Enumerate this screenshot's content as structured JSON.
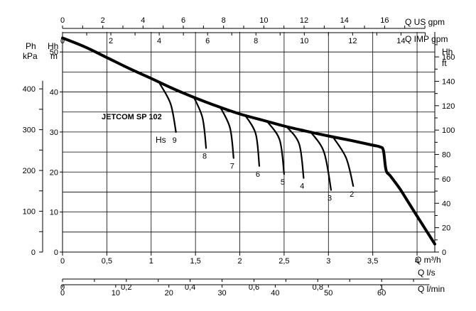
{
  "chart_data": {
    "type": "line",
    "model_label": "JETCOM SP 102",
    "x_axis": {
      "unit_label": "Q m³/h",
      "range": [
        0,
        4.2
      ],
      "ticks": [
        "0",
        "0,5",
        "1",
        "1,5",
        "2",
        "2,5",
        "3",
        "3,5",
        "4"
      ],
      "tick_values": [
        0,
        0.5,
        1,
        1.5,
        2,
        2.5,
        3,
        3.5,
        4
      ]
    },
    "y_axis": {
      "unit_label_line1": "Hh",
      "unit_label_line2": "m",
      "range": [
        0,
        55
      ],
      "ticks": [
        "0",
        "10",
        "20",
        "30",
        "40",
        "50"
      ],
      "tick_values": [
        0,
        10,
        20,
        30,
        40,
        50
      ],
      "grid_step": 5
    },
    "secondary_axes": {
      "top_us_gpm": {
        "label": "Q US gpm",
        "ticks": [
          "0",
          "2",
          "4",
          "6",
          "8",
          "10",
          "12",
          "14",
          "16"
        ],
        "tick_values": [
          0,
          2,
          4,
          6,
          8,
          10,
          12,
          14,
          16
        ],
        "minor_step": 1,
        "max": 18,
        "factor": 4.4029
      },
      "top_imp_gpm": {
        "label": "Q IMP gpm",
        "ticks": [
          "0",
          "2",
          "4",
          "6",
          "8",
          "10",
          "12",
          "14"
        ],
        "tick_values": [
          0,
          2,
          4,
          6,
          8,
          10,
          12,
          14
        ],
        "minor_step": 1,
        "max": 15,
        "factor": 3.6662
      },
      "bottom_ls": {
        "label": "Q l/s",
        "ticks": [
          "0",
          "0,2",
          "0,4",
          "0,6",
          "0,8",
          "1"
        ],
        "tick_values": [
          0,
          0.2,
          0.4,
          0.6,
          0.8,
          1.0
        ],
        "minor_step": 0.1,
        "max": 1.15,
        "factor": 0.27778
      },
      "bottom_lmin": {
        "label": "Q l/min",
        "ticks": [
          "0",
          "10",
          "20",
          "30",
          "40",
          "50",
          "60"
        ],
        "tick_values": [
          0,
          10,
          20,
          30,
          40,
          50,
          60
        ],
        "minor_step": 10,
        "max": 69,
        "factor": 16.6667
      },
      "left_kpa": {
        "label_line1": "Ph",
        "label_line2": "kPa",
        "ticks": [
          "0",
          "100",
          "200",
          "300",
          "400"
        ],
        "tick_values": [
          0,
          100,
          200,
          300,
          400
        ],
        "factor": 9.81
      },
      "right_ft": {
        "label_line1": "Hh",
        "label_line2": "ft",
        "ticks": [
          "0",
          "20",
          "40",
          "60",
          "80",
          "100",
          "120",
          "140",
          "160"
        ],
        "tick_values": [
          0,
          20,
          40,
          60,
          80,
          100,
          120,
          140,
          160
        ],
        "factor": 3.2808
      }
    },
    "grid": true,
    "series": [
      {
        "type": "main",
        "points": [
          [
            0,
            53.5
          ],
          [
            0.25,
            51.3
          ],
          [
            0.5,
            48.6
          ],
          [
            0.75,
            45.9
          ],
          [
            1.0,
            43.4
          ],
          [
            1.25,
            40.8
          ],
          [
            1.5,
            38.5
          ],
          [
            1.75,
            36.4
          ],
          [
            2.0,
            34.5
          ],
          [
            2.25,
            33.0
          ],
          [
            2.5,
            31.5
          ],
          [
            2.75,
            30.2
          ],
          [
            3.0,
            29.0
          ],
          [
            3.25,
            27.9
          ],
          [
            3.5,
            26.7
          ],
          [
            3.58,
            26.3
          ],
          [
            3.62,
            25.4
          ],
          [
            3.65,
            20.5
          ],
          [
            3.7,
            19.0
          ],
          [
            3.8,
            16.0
          ],
          [
            3.9,
            12.5
          ],
          [
            4.0,
            9.0
          ],
          [
            4.1,
            5.5
          ],
          [
            4.2,
            2.0
          ]
        ]
      }
    ],
    "suction_curves": [
      {
        "label": "9",
        "points": [
          [
            1.1,
            42.0
          ],
          [
            1.22,
            37.0
          ],
          [
            1.28,
            30.0
          ]
        ]
      },
      {
        "label": "8",
        "points": [
          [
            1.48,
            38.8
          ],
          [
            1.58,
            33.5
          ],
          [
            1.62,
            26.0
          ]
        ]
      },
      {
        "label": "7",
        "points": [
          [
            1.78,
            36.2
          ],
          [
            1.89,
            31.0
          ],
          [
            1.93,
            23.5
          ]
        ]
      },
      {
        "label": "6",
        "points": [
          [
            2.06,
            34.2
          ],
          [
            2.18,
            29.5
          ],
          [
            2.22,
            21.5
          ]
        ]
      },
      {
        "label": "5",
        "points": [
          [
            2.31,
            32.6
          ],
          [
            2.45,
            28.0
          ],
          [
            2.5,
            19.5
          ]
        ]
      },
      {
        "label": "4",
        "points": [
          [
            2.53,
            31.3
          ],
          [
            2.67,
            27.0
          ],
          [
            2.72,
            18.5
          ]
        ]
      },
      {
        "label": "3",
        "points": [
          [
            2.8,
            30.0
          ],
          [
            2.95,
            25.0
          ],
          [
            3.03,
            15.5
          ]
        ]
      },
      {
        "label": "2",
        "points": [
          [
            3.05,
            28.8
          ],
          [
            3.2,
            23.5
          ],
          [
            3.28,
            16.5
          ]
        ]
      }
    ],
    "suction_label_prefix": "Hs"
  }
}
